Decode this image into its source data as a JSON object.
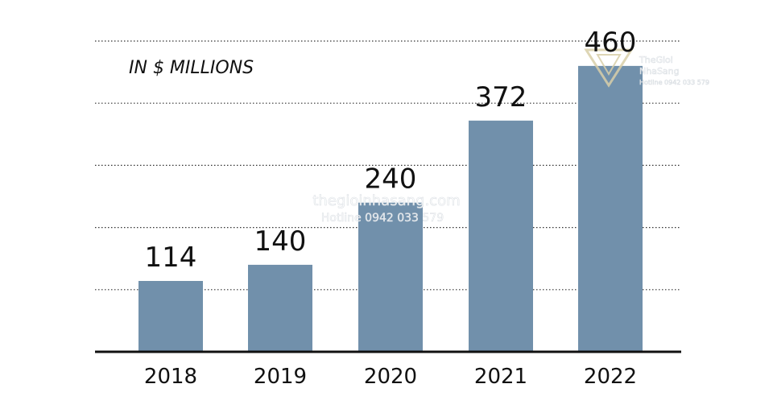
{
  "chart_data": {
    "type": "bar",
    "unit_note": "IN $ MILLIONS",
    "categories": [
      "2018",
      "2019",
      "2020",
      "2021",
      "2022"
    ],
    "values": [
      114,
      140,
      240,
      372,
      460
    ],
    "data_labels": [
      "114",
      "140",
      "240",
      "372",
      "460"
    ],
    "title": "",
    "xlabel": "",
    "ylabel": "",
    "ylim": [
      0,
      500
    ],
    "grid": true,
    "gridline_style": "dotted",
    "legend": "none",
    "colors": {
      "bar": "#7190ab",
      "gridline": "#333333",
      "baseline": "#111111",
      "text": "#111111"
    }
  },
  "watermark": {
    "site": "thegioinhasang.com",
    "hotline": "Hotline 0942 033 579",
    "logo_line1": "TheGioi",
    "logo_line2": "NhaSang",
    "logo_hotline": "Hotline 0942 033 579"
  }
}
